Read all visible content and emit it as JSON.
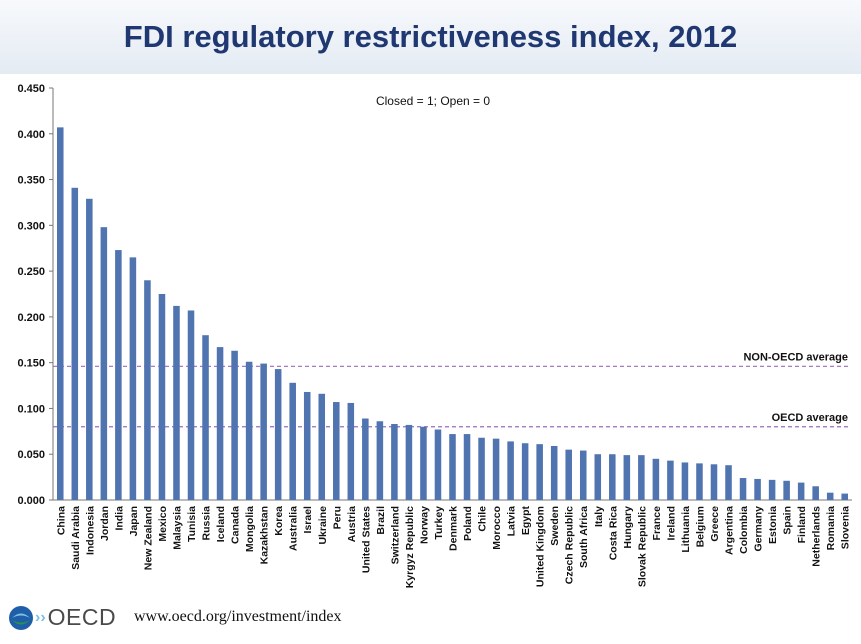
{
  "title": "FDI regulatory restrictiveness index, 2012",
  "footer": {
    "url": "www.oecd.org/investment/index",
    "logo_text": "OECD"
  },
  "colors": {
    "bar": "#4f74b0",
    "average_line": "#9b6bc0",
    "title": "#1f3872"
  },
  "chart_data": {
    "type": "bar",
    "title": "FDI regulatory restrictiveness index, 2012",
    "annotation": "Closed = 1; Open = 0",
    "xlabel": "",
    "ylabel": "",
    "ylim": [
      0,
      0.45
    ],
    "yticks": [
      "0.000",
      "0.050",
      "0.100",
      "0.150",
      "0.200",
      "0.250",
      "0.300",
      "0.350",
      "0.400",
      "0.450"
    ],
    "grid": false,
    "categories": [
      "China",
      "Saudi Arabia",
      "Indonesia",
      "Jordan",
      "India",
      "Japan",
      "New Zealand",
      "Mexico",
      "Malaysia",
      "Tunisia",
      "Russia",
      "Iceland",
      "Canada",
      "Mongolia",
      "Kazakhstan",
      "Korea",
      "Australia",
      "Israel",
      "Ukraine",
      "Peru",
      "Austria",
      "United States",
      "Brazil",
      "Switzerland",
      "Kyrgyz Republic",
      "Norway",
      "Turkey",
      "Denmark",
      "Poland",
      "Chile",
      "Morocco",
      "Latvia",
      "Egypt",
      "United Kingdom",
      "Sweden",
      "Czech Republic",
      "South Africa",
      "Italy",
      "Costa Rica",
      "Hungary",
      "Slovak Republic",
      "France",
      "Ireland",
      "Lithuania",
      "Belgium",
      "Greece",
      "Argentina",
      "Colombia",
      "Germany",
      "Estonia",
      "Spain",
      "Finland",
      "Netherlands",
      "Romania",
      "Slovenia"
    ],
    "values": [
      0.407,
      0.341,
      0.329,
      0.298,
      0.273,
      0.265,
      0.24,
      0.225,
      0.212,
      0.207,
      0.18,
      0.167,
      0.163,
      0.151,
      0.149,
      0.143,
      0.128,
      0.118,
      0.116,
      0.107,
      0.106,
      0.089,
      0.086,
      0.083,
      0.082,
      0.08,
      0.077,
      0.072,
      0.072,
      0.068,
      0.067,
      0.064,
      0.062,
      0.061,
      0.059,
      0.055,
      0.054,
      0.05,
      0.05,
      0.049,
      0.049,
      0.045,
      0.043,
      0.041,
      0.04,
      0.039,
      0.038,
      0.024,
      0.023,
      0.022,
      0.021,
      0.019,
      0.015,
      0.008,
      0.007
    ],
    "reference_lines": [
      {
        "label": "NON-OECD average",
        "value": 0.146
      },
      {
        "label": "OECD average",
        "value": 0.08
      }
    ]
  }
}
